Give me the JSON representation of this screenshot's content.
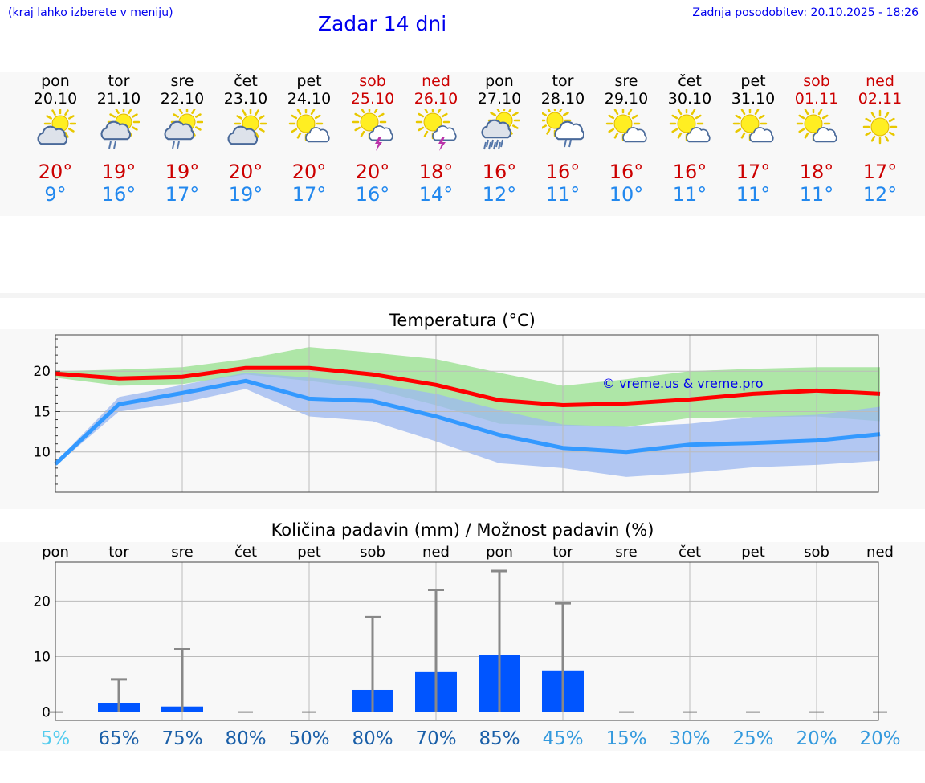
{
  "header": {
    "hint": "(kraj lahko izberete v meniju)",
    "title": "Zadar 14 dni",
    "updated": "Zadnja posodobitev: 20.10.2025 - 18:26"
  },
  "days": [
    {
      "name": "pon",
      "date": "20.10",
      "weekend": false,
      "icon": "partly-cloudy-icon",
      "max": "20°",
      "min": "9°"
    },
    {
      "name": "tor",
      "date": "21.10",
      "weekend": false,
      "icon": "partly-cloudy-rain-icon",
      "max": "19°",
      "min": "16°"
    },
    {
      "name": "sre",
      "date": "22.10",
      "weekend": false,
      "icon": "partly-cloudy-rain-icon",
      "max": "19°",
      "min": "17°"
    },
    {
      "name": "čet",
      "date": "23.10",
      "weekend": false,
      "icon": "partly-cloudy-icon",
      "max": "20°",
      "min": "19°"
    },
    {
      "name": "pet",
      "date": "24.10",
      "weekend": false,
      "icon": "mostly-sunny-icon",
      "max": "20°",
      "min": "17°"
    },
    {
      "name": "sob",
      "date": "25.10",
      "weekend": true,
      "icon": "sun-thunderstorm-icon",
      "max": "20°",
      "min": "16°"
    },
    {
      "name": "ned",
      "date": "26.10",
      "weekend": true,
      "icon": "sun-thunderstorm-icon",
      "max": "18°",
      "min": "14°"
    },
    {
      "name": "pon",
      "date": "27.10",
      "weekend": false,
      "icon": "heavy-rain-icon",
      "max": "16°",
      "min": "12°"
    },
    {
      "name": "tor",
      "date": "28.10",
      "weekend": false,
      "icon": "cloud-rain-icon",
      "max": "16°",
      "min": "11°"
    },
    {
      "name": "sre",
      "date": "29.10",
      "weekend": false,
      "icon": "mostly-sunny-icon",
      "max": "16°",
      "min": "10°"
    },
    {
      "name": "čet",
      "date": "30.10",
      "weekend": false,
      "icon": "mostly-sunny-icon",
      "max": "16°",
      "min": "11°"
    },
    {
      "name": "pet",
      "date": "31.10",
      "weekend": false,
      "icon": "mostly-sunny-icon",
      "max": "17°",
      "min": "11°"
    },
    {
      "name": "sob",
      "date": "01.11",
      "weekend": true,
      "icon": "mostly-sunny-icon",
      "max": "18°",
      "min": "11°"
    },
    {
      "name": "ned",
      "date": "02.11",
      "weekend": true,
      "icon": "sun-icon",
      "max": "17°",
      "min": "12°"
    }
  ],
  "copyright": "© vreme.us & vreme.pro",
  "chart_data": [
    {
      "type": "line",
      "title": "Temperatura (°C)",
      "yticks": [
        10,
        15,
        20
      ],
      "ylim": [
        5,
        24.5
      ],
      "series": [
        {
          "name": "max",
          "color": "#ff0000",
          "values": [
            19.7,
            19.1,
            19.3,
            20.4,
            20.4,
            19.6,
            18.3,
            16.4,
            15.8,
            16.0,
            16.5,
            17.2,
            17.6,
            17.2
          ]
        },
        {
          "name": "min",
          "color": "#3399ff",
          "values": [
            8.5,
            15.9,
            17.3,
            18.8,
            16.6,
            16.3,
            14.4,
            12.1,
            10.5,
            10.0,
            10.9,
            11.1,
            11.4,
            12.2
          ]
        }
      ],
      "bands": [
        {
          "name": "max-range",
          "color": "#99e08f",
          "upper": [
            20.0,
            20.2,
            20.5,
            21.5,
            23.0,
            22.3,
            21.5,
            19.8,
            18.2,
            19.0,
            20.0,
            20.3,
            20.5,
            20.5
          ],
          "lower": [
            19.2,
            18.2,
            18.4,
            19.6,
            18.8,
            17.8,
            15.8,
            13.5,
            13.2,
            13.1,
            14.2,
            14.3,
            14.4,
            13.8
          ]
        },
        {
          "name": "min-range",
          "color": "#9db9f0",
          "upper": [
            8.7,
            16.8,
            18.3,
            19.8,
            19.2,
            18.5,
            17.2,
            15.2,
            13.4,
            13.1,
            13.5,
            14.3,
            14.6,
            15.6
          ],
          "lower": [
            8.3,
            15.0,
            16.1,
            17.8,
            14.4,
            13.8,
            11.3,
            8.6,
            8.0,
            6.9,
            7.4,
            8.1,
            8.4,
            8.9
          ]
        }
      ]
    },
    {
      "type": "bar",
      "title": "Količina padavin (mm) / Možnost padavin (%)",
      "categories": [
        "pon",
        "tor",
        "sre",
        "čet",
        "pet",
        "sob",
        "ned",
        "pon",
        "tor",
        "sre",
        "čet",
        "pet",
        "sob",
        "ned"
      ],
      "values": [
        0,
        1.6,
        1.0,
        0,
        0,
        4.0,
        7.2,
        10.3,
        7.5,
        0,
        0,
        0,
        0,
        0
      ],
      "error_max": [
        0,
        5.9,
        11.3,
        0,
        0,
        17.1,
        22.0,
        25.4,
        19.6,
        0,
        0,
        0,
        0,
        0
      ],
      "probability": [
        "5%",
        "65%",
        "75%",
        "80%",
        "50%",
        "80%",
        "70%",
        "85%",
        "45%",
        "15%",
        "30%",
        "25%",
        "20%",
        "20%"
      ],
      "probability_colors": [
        "#55ccee",
        "#1a5fa8",
        "#1a5fa8",
        "#1a5fa8",
        "#1a5fa8",
        "#1a5fa8",
        "#1a5fa8",
        "#1a5fa8",
        "#3399dd",
        "#3399dd",
        "#3399dd",
        "#3399dd",
        "#3399dd",
        "#3399dd"
      ],
      "yticks": [
        0,
        10,
        20
      ],
      "ylim": [
        -1.5,
        27
      ],
      "bar_color": "#0055ff",
      "whisker_color": "#888888"
    }
  ]
}
